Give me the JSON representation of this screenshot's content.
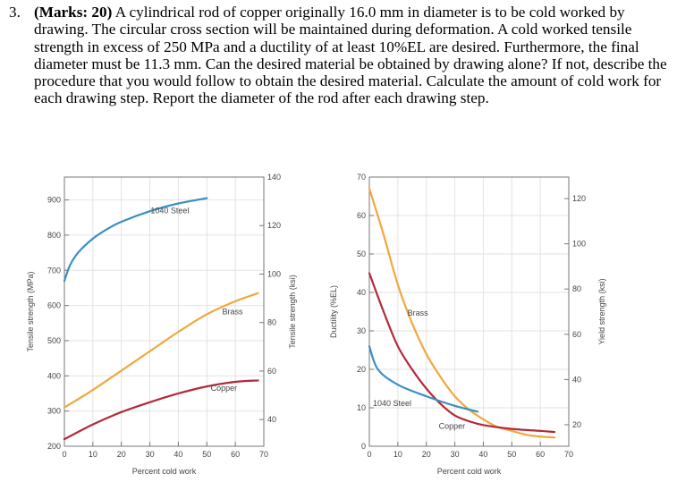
{
  "question": {
    "number": "3.",
    "marks": "(Marks: 20)",
    "text": "A cylindrical rod of copper originally 16.0 mm in diameter is to be cold worked by drawing. The circular cross section will be maintained during deformation. A cold worked tensile strength in excess of 250 MPa and a ductility of at least 10%EL are desired. Furthermore, the final diameter must be 11.3 mm. Can the desired material be obtained by drawing alone? If not, describe the procedure that you would follow to obtain the desired material. Calculate the amount of cold work for each drawing step. Report the diameter of the rod after each drawing step."
  },
  "chart_data": [
    {
      "type": "line",
      "title": "",
      "xlabel": "Percent cold work",
      "ylabel": "Tensile strength (MPa)",
      "y2label": "Tensile strength (ksi)",
      "xlim": [
        0,
        70
      ],
      "ylim": [
        200,
        965
      ],
      "y2lim": [
        29,
        140
      ],
      "xticks": [
        0,
        10,
        20,
        30,
        40,
        50,
        60,
        70
      ],
      "yticks": [
        200,
        300,
        400,
        500,
        600,
        700,
        800,
        900
      ],
      "y2ticks": [
        40,
        60,
        80,
        100,
        120,
        140
      ],
      "grid": true,
      "series": [
        {
          "name": "1040 Steel",
          "color": "#3b8fc4",
          "label_at": [
            37,
            862
          ],
          "x": [
            0,
            2,
            5,
            10,
            15,
            20,
            30,
            40,
            50
          ],
          "y": [
            670,
            715,
            752,
            790,
            817,
            838,
            868,
            890,
            905
          ]
        },
        {
          "name": "Brass",
          "color": "#f0a83c",
          "label_at": [
            59,
            575
          ],
          "x": [
            0,
            10,
            20,
            30,
            40,
            50,
            60,
            68
          ],
          "y": [
            310,
            360,
            415,
            470,
            525,
            575,
            612,
            635
          ]
        },
        {
          "name": "Copper",
          "color": "#b3293a",
          "label_at": [
            56,
            358
          ],
          "x": [
            0,
            10,
            20,
            30,
            40,
            50,
            60,
            68
          ],
          "y": [
            220,
            262,
            297,
            325,
            350,
            370,
            383,
            387
          ]
        }
      ]
    },
    {
      "type": "line",
      "title": "",
      "xlabel": "Percent cold work",
      "ylabel": "Ductility (%EL)",
      "y2label": "Yield strength (ksi)",
      "xlim": [
        0,
        70
      ],
      "ylim": [
        0,
        70
      ],
      "y2lim": [
        10.5,
        129.5
      ],
      "xticks": [
        0,
        10,
        20,
        30,
        40,
        50,
        60,
        70
      ],
      "yticks": [
        0,
        10,
        20,
        30,
        40,
        50,
        60,
        70
      ],
      "y2ticks": [
        20,
        40,
        60,
        80,
        100,
        120
      ],
      "grid": true,
      "series": [
        {
          "name": "Brass",
          "color": "#f0a83c",
          "label_at": [
            17,
            34
          ],
          "x": [
            0,
            5,
            10,
            15,
            20,
            25,
            30,
            35,
            40,
            45,
            50,
            55,
            60,
            65
          ],
          "y": [
            67,
            55,
            42,
            32,
            24,
            18,
            13,
            9.5,
            7,
            5,
            4,
            3,
            2.5,
            2.3
          ]
        },
        {
          "name": "Copper",
          "color": "#b3293a",
          "label_at": [
            29,
            4.5
          ],
          "x": [
            0,
            5,
            10,
            15,
            20,
            25,
            30,
            35,
            40,
            50,
            60,
            65
          ],
          "y": [
            45,
            35,
            26,
            20,
            15,
            11,
            8,
            6.5,
            5.5,
            4.5,
            4,
            3.7
          ]
        },
        {
          "name": "1040 Steel",
          "color": "#3b8fc4",
          "label_at": [
            8,
            10.5
          ],
          "x": [
            0,
            3,
            10,
            20,
            30,
            38
          ],
          "y": [
            26,
            20,
            16,
            13,
            10.5,
            9
          ]
        }
      ]
    }
  ]
}
